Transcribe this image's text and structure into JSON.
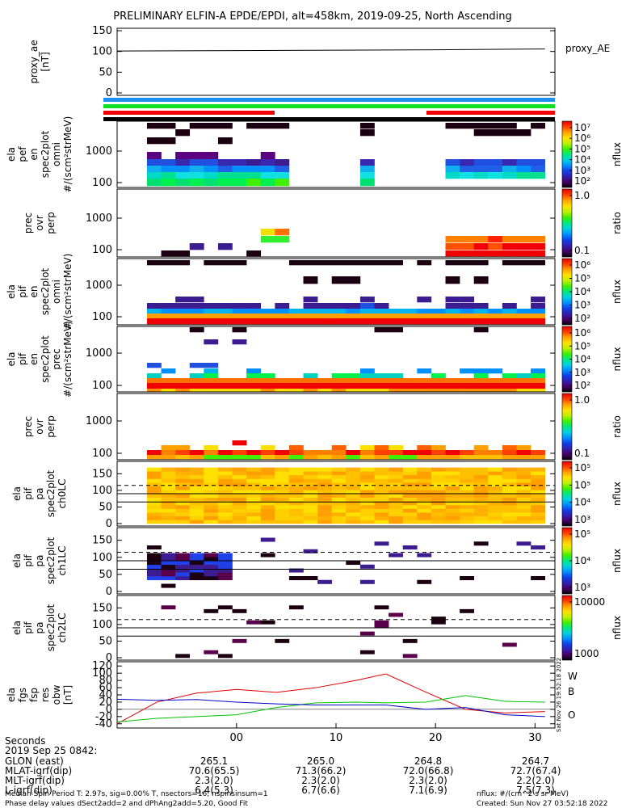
{
  "title": "PRELIMINARY ELFIN-A EPDE/EPDI, alt=458km, 2019-09-25, North Ascending",
  "chart_data": [
    {
      "type": "line",
      "ylabel_lines": [
        "proxy_ae",
        "[nT]"
      ],
      "legend": "proxy_AE",
      "yticks": [
        "150",
        "100",
        "50",
        "0"
      ],
      "ylim": [
        0,
        150
      ],
      "x": [
        -12,
        0,
        10,
        20,
        31
      ],
      "series": [
        {
          "name": "proxy_AE",
          "values": [
            101,
            102,
            103,
            104,
            106
          ]
        }
      ]
    },
    {
      "type": "heatmap",
      "ylabel_lines": [
        "ela",
        "pef",
        "en",
        "spec2plot",
        "omni",
        "#/(scm²strMeV)"
      ],
      "yticks": [
        "1000",
        "100"
      ],
      "colorbar_label": "nflux",
      "colorbar_ticks": [
        "10⁷",
        "10⁶",
        "10⁵",
        "10⁴",
        "10³",
        "10²"
      ]
    },
    {
      "type": "heatmap",
      "ylabel_lines": [
        "prec",
        "ovr",
        "perp"
      ],
      "yticks": [
        "1000",
        "100"
      ],
      "colorbar_label": "ratio",
      "colorbar_ticks": [
        "1.0",
        "0.1"
      ]
    },
    {
      "type": "heatmap",
      "ylabel_lines": [
        "ela",
        "pif",
        "en",
        "spec2plot",
        "omni",
        "#/(scm²strMeV)"
      ],
      "yticks": [
        "1000",
        "100"
      ],
      "colorbar_label": "nflux",
      "colorbar_ticks": [
        "10⁶",
        "10⁵",
        "10⁴",
        "10³",
        "10²"
      ]
    },
    {
      "type": "heatmap",
      "ylabel_lines": [
        "ela",
        "pif",
        "en",
        "spec2plot",
        "prec",
        "#/(scm²strMeV)"
      ],
      "yticks": [
        "1000",
        "100"
      ],
      "colorbar_label": "nflux",
      "colorbar_ticks": [
        "10⁶",
        "10⁵",
        "10⁴",
        "10³",
        "10²"
      ]
    },
    {
      "type": "heatmap",
      "ylabel_lines": [
        "prec",
        "ovr",
        "perp"
      ],
      "yticks": [
        "1000",
        "100"
      ],
      "colorbar_label": "ratio",
      "colorbar_ticks": [
        "1.0",
        "0.1"
      ]
    },
    {
      "type": "heatmap",
      "ylabel_lines": [
        "ela",
        "pif",
        "pa",
        "spec2plot",
        "ch0LC"
      ],
      "yticks": [
        "150",
        "100",
        "50",
        "0"
      ],
      "colorbar_label": "nflux",
      "colorbar_ticks": [
        "10⁵",
        "10⁵",
        "10⁴",
        "10³"
      ]
    },
    {
      "type": "heatmap",
      "ylabel_lines": [
        "ela",
        "pif",
        "pa",
        "spec2plot",
        "ch1LC"
      ],
      "yticks": [
        "150",
        "100",
        "50",
        "0"
      ],
      "colorbar_label": "nflux",
      "colorbar_ticks": [
        "10⁵",
        "10⁴",
        "10³"
      ]
    },
    {
      "type": "heatmap",
      "ylabel_lines": [
        "ela",
        "pif",
        "pa",
        "spec2plot",
        "ch2LC"
      ],
      "yticks": [
        "150",
        "100",
        "50",
        "0"
      ],
      "colorbar_label": "nflux",
      "colorbar_ticks": [
        "10000",
        "1000"
      ]
    },
    {
      "type": "line",
      "ylabel_lines": [
        "ela",
        "fgs",
        "fsp",
        "res",
        "obw",
        "[nT]"
      ],
      "yticks": [
        "120",
        "100",
        "80",
        "60",
        "40",
        "20",
        "0",
        "-20",
        "-40"
      ],
      "ylim": [
        -45,
        125
      ],
      "xticks": [
        "00",
        "10",
        "20",
        "30"
      ],
      "x": [
        -12,
        -8,
        -4,
        0,
        4,
        8,
        12,
        15,
        19,
        23,
        27,
        31
      ],
      "series": [
        {
          "name": "W",
          "color": "#e00000",
          "values": [
            -40,
            20,
            45,
            55,
            47,
            60,
            80,
            98,
            48,
            0,
            -10,
            -6
          ]
        },
        {
          "name": "B",
          "color": "#00c000",
          "values": [
            -35,
            -25,
            -20,
            -15,
            5,
            18,
            20,
            18,
            20,
            38,
            22,
            20
          ]
        },
        {
          "name": "O",
          "color": "#0000c8",
          "values": [
            28,
            25,
            27,
            20,
            15,
            12,
            12,
            12,
            0,
            5,
            -15,
            -20
          ]
        }
      ]
    }
  ],
  "footer": {
    "header_lines": [
      "Seconds",
      "2019 Sep 25 0842:"
    ],
    "rows": [
      {
        "label": "GLON (east)",
        "values": [
          "265.1",
          "265.0",
          "264.8",
          "264.7"
        ]
      },
      {
        "label": "MLAT-igrf(dip)",
        "values": [
          "70.6(65.5)",
          "71.3(66.2)",
          "72.0(66.8)",
          "72.7(67.4)"
        ]
      },
      {
        "label": "MLT-igrf(dip)",
        "values": [
          "2.3(2.0)",
          "2.3(2.0)",
          "2.3(2.0)",
          "2.2(2.0)"
        ]
      },
      {
        "label": "L-igrf(dip)",
        "values": [
          "6.4(5.3)",
          "6.7(6.6)",
          "7.1(6.9)",
          "7.5(7.3)"
        ]
      }
    ],
    "note1": "Median Spin Period T: 2.97s, sig=0.00% T, nsectors=16, nspinsinsum=1",
    "note2": "Phase delay values dSect2add=2 and dPhAng2add=5.20, Good Fit",
    "nflux_units": "nflux: #/(cm^2 s sr MeV)",
    "created": "Created: Sun Nov 27 03:52:18 2022",
    "side_stamp": "Sat Nov 26 19:52:18 2022"
  }
}
